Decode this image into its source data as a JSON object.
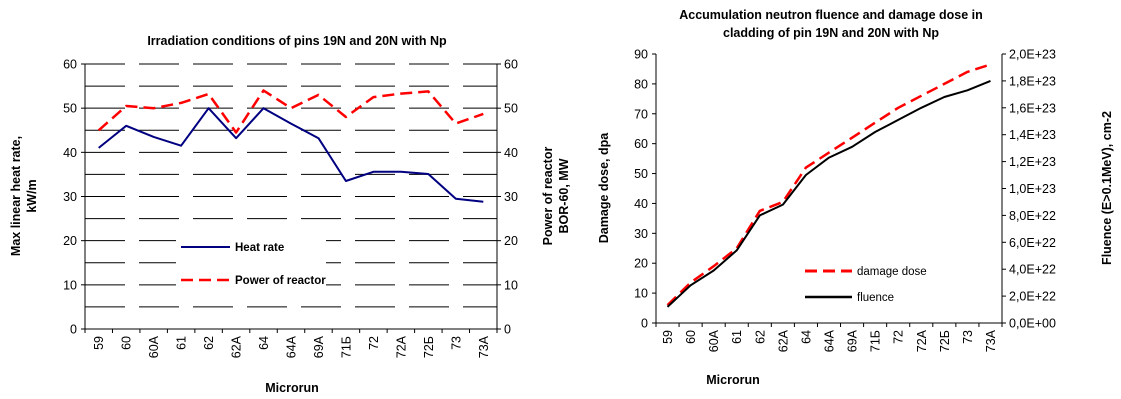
{
  "chart_data": [
    {
      "type": "line",
      "title": "Irradiation conditions of pins 19N and 20N with Np",
      "xlabel": "Microrun",
      "ylabel": "Max  linear heat rate, kW/m",
      "ylabel_right": "Power of reactor BOR-60, MW",
      "ylabel_lines": [
        "Max  linear heat rate,",
        "kW/m"
      ],
      "ylabel_right_lines": [
        "Power of reactor",
        "BOR-60, MW"
      ],
      "categories": [
        "59",
        "60",
        "60A",
        "61",
        "62",
        "62A",
        "64",
        "64A",
        "69A",
        "71Б",
        "72",
        "72A",
        "72Б",
        "73",
        "73A"
      ],
      "ylim": [
        0,
        60
      ],
      "ylim_right": [
        0,
        60
      ],
      "yticks": [
        "0",
        "10",
        "20",
        "30",
        "40",
        "50",
        "60"
      ],
      "yticks_right": [
        "0",
        "10",
        "20",
        "30",
        "40",
        "50",
        "60"
      ],
      "grid": "horizontal dashed",
      "legend": "center",
      "series": [
        {
          "name": "Heat rate",
          "axis": "left",
          "color": "#000080",
          "style": "solid",
          "values": [
            41,
            46,
            43.5,
            41.5,
            50,
            43.2,
            50,
            46.5,
            43.2,
            33.5,
            35.6,
            35.6,
            35.1,
            29.5,
            28.8
          ]
        },
        {
          "name": "Power of reactor",
          "axis": "right",
          "color": "#ff0000",
          "style": "dashed",
          "values": [
            45,
            50.5,
            50,
            51.2,
            53.2,
            44.5,
            54,
            50,
            53,
            48,
            52.5,
            53.3,
            53.8,
            46.5,
            48.7
          ]
        }
      ]
    },
    {
      "type": "line",
      "title": "Accumulation neutron fluence and damage dose in cladding of pin 19N and 20N with Np",
      "title_lines": [
        "Accumulation neutron fluence and damage dose in",
        "cladding of pin 19N and 20N with Np"
      ],
      "xlabel": "Microrun",
      "ylabel": "Damage dose, dpa",
      "ylabel_right": "Fluence (E>0.1MeV), cm-2",
      "categories": [
        "59",
        "60",
        "60A",
        "61",
        "62",
        "62A",
        "64",
        "64A",
        "69A",
        "71Б",
        "72",
        "72A",
        "72Б",
        "73",
        "73A"
      ],
      "ylim": [
        0,
        90
      ],
      "ylim_right": [
        0,
        2e+23
      ],
      "yticks": [
        "0",
        "10",
        "20",
        "30",
        "40",
        "50",
        "60",
        "70",
        "80",
        "90"
      ],
      "yticks_right": [
        "0,0E+00",
        "2,0E+22",
        "4,0E+22",
        "6,0E+22",
        "8,0E+22",
        "1,0E+23",
        "1,2E+23",
        "1,4E+23",
        "1,6E+23",
        "1,8E+23",
        "2,0E+23"
      ],
      "grid": "none",
      "legend": "bottom-center",
      "series": [
        {
          "name": "damage dose",
          "axis": "left",
          "color": "#ff0000",
          "style": "dashed",
          "values": [
            6,
            13.5,
            19,
            25,
            37.5,
            40.5,
            52,
            57,
            62,
            67,
            72,
            76,
            80,
            84,
            86.5
          ]
        },
        {
          "name": "fluence",
          "axis": "right",
          "color": "#000000",
          "style": "solid",
          "values": [
            1.2e+22,
            2.8e+22,
            3.9e+22,
            5.4e+22,
            8e+22,
            8.8e+22,
            1.1e+23,
            1.23e+23,
            1.31e+23,
            1.42e+23,
            1.51e+23,
            1.6e+23,
            1.68e+23,
            1.73e+23,
            1.8e+23
          ]
        }
      ]
    }
  ]
}
